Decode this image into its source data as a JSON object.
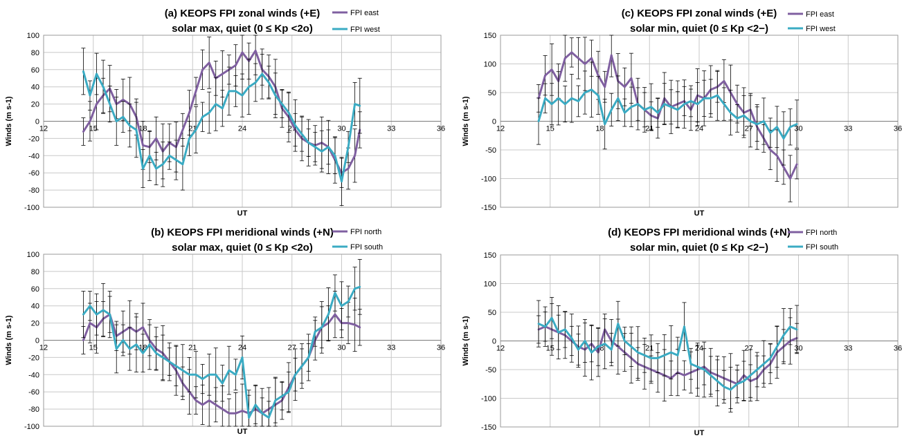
{
  "colors": {
    "series_a": "#7f5fa0",
    "series_b": "#3aabc3",
    "grid": "#c8c8c8",
    "errorbar": "#000000"
  },
  "chart_data": [
    {
      "type": "line",
      "title": "(a) KEOPS FPI zonal winds (+E)",
      "subtitle": "solar max, quiet (0 ≤ Kp <2o)",
      "xlabel": "UT",
      "ylabel": "Winds (m s-1)",
      "xlim": [
        12,
        36
      ],
      "ylim": [
        -100,
        100
      ],
      "xticks": [
        "12",
        "15",
        "18",
        "21",
        "24",
        "27",
        "30",
        "33",
        "36"
      ],
      "yticks": [
        "100",
        "80",
        "60",
        "40",
        "20",
        "0",
        "-20",
        "-40",
        "-60",
        "-80",
        "-100"
      ],
      "grid": true,
      "legend": "top-right",
      "series": [
        {
          "name": "FPI east",
          "x": [
            14.4,
            14.8,
            15.2,
            15.6,
            16.0,
            16.4,
            16.8,
            17.2,
            17.6,
            18.0,
            18.4,
            18.8,
            19.2,
            19.6,
            20.0,
            20.4,
            20.8,
            21.2,
            21.6,
            22.0,
            22.4,
            22.8,
            23.2,
            23.6,
            24.0,
            24.4,
            24.8,
            25.2,
            25.6,
            26.0,
            26.4,
            26.8,
            27.2,
            27.6,
            28.0,
            28.4,
            28.8,
            29.2,
            29.6,
            30.0,
            30.4,
            30.8,
            31.1
          ],
          "y": [
            -12,
            0,
            20,
            30,
            38,
            20,
            25,
            20,
            5,
            -28,
            -30,
            -20,
            -35,
            -25,
            -30,
            -10,
            10,
            35,
            60,
            68,
            50,
            55,
            60,
            65,
            80,
            70,
            82,
            60,
            52,
            40,
            15,
            5,
            -10,
            -20,
            -25,
            -28,
            -25,
            -30,
            -45,
            -60,
            -55,
            -40,
            -10
          ]
        },
        {
          "name": "FPI west",
          "x": [
            14.4,
            14.8,
            15.2,
            15.6,
            16.0,
            16.4,
            16.8,
            17.2,
            17.6,
            18.0,
            18.4,
            18.8,
            19.2,
            19.6,
            20.0,
            20.4,
            20.8,
            21.2,
            21.6,
            22.0,
            22.4,
            22.8,
            23.2,
            23.6,
            24.0,
            24.4,
            24.8,
            25.2,
            25.6,
            26.0,
            26.4,
            26.8,
            27.2,
            27.6,
            28.0,
            28.4,
            28.8,
            29.2,
            29.6,
            30.0,
            30.4,
            30.8,
            31.1
          ],
          "y": [
            58,
            30,
            55,
            40,
            20,
            0,
            5,
            -5,
            -10,
            -55,
            -40,
            -55,
            -50,
            -40,
            -45,
            -50,
            -20,
            -10,
            5,
            10,
            20,
            15,
            35,
            35,
            30,
            40,
            45,
            55,
            45,
            30,
            20,
            10,
            -5,
            -15,
            -25,
            -30,
            -35,
            -30,
            -40,
            -70,
            -30,
            20,
            18
          ]
        }
      ]
    },
    {
      "type": "line",
      "title": "(b) KEOPS FPI meridional winds (+N)",
      "subtitle": "solar max, quiet (0 ≤ Kp <2o)",
      "xlabel": "UT",
      "ylabel": "Winds (m s-1)",
      "xlim": [
        12,
        36
      ],
      "ylim": [
        -100,
        100
      ],
      "xticks": [
        "12",
        "15",
        "18",
        "21",
        "24",
        "27",
        "30",
        "33",
        "36"
      ],
      "yticks": [
        "100",
        "80",
        "60",
        "40",
        "20",
        "0",
        "-20",
        "-40",
        "-60",
        "-80",
        "-100"
      ],
      "grid": true,
      "legend": "top-right",
      "series": [
        {
          "name": "FPI north",
          "x": [
            14.4,
            14.8,
            15.2,
            15.6,
            16.0,
            16.4,
            16.8,
            17.2,
            17.6,
            18.0,
            18.4,
            18.8,
            19.2,
            19.6,
            20.0,
            20.4,
            20.8,
            21.2,
            21.6,
            22.0,
            22.4,
            22.8,
            23.2,
            23.6,
            24.0,
            24.4,
            24.8,
            25.2,
            25.6,
            26.0,
            26.4,
            26.8,
            27.2,
            27.6,
            28.0,
            28.4,
            28.8,
            29.2,
            29.6,
            30.0,
            30.4,
            30.8,
            31.1
          ],
          "y": [
            0,
            20,
            15,
            25,
            30,
            5,
            10,
            15,
            10,
            15,
            0,
            -10,
            -15,
            -25,
            -35,
            -50,
            -60,
            -70,
            -75,
            -70,
            -75,
            -80,
            -85,
            -85,
            -82,
            -85,
            -80,
            -85,
            -80,
            -75,
            -70,
            -55,
            -40,
            -30,
            -20,
            0,
            15,
            20,
            30,
            20,
            20,
            18,
            15
          ]
        },
        {
          "name": "FPI south",
          "x": [
            14.4,
            14.8,
            15.2,
            15.6,
            16.0,
            16.4,
            16.8,
            17.2,
            17.6,
            18.0,
            18.4,
            18.8,
            19.2,
            19.6,
            20.0,
            20.4,
            20.8,
            21.2,
            21.6,
            22.0,
            22.4,
            22.8,
            23.2,
            23.6,
            24.0,
            24.4,
            24.8,
            25.2,
            25.6,
            26.0,
            26.4,
            26.8,
            27.2,
            27.6,
            28.0,
            28.4,
            28.8,
            29.2,
            29.6,
            30.0,
            30.4,
            30.8,
            31.1
          ],
          "y": [
            30,
            40,
            30,
            35,
            30,
            -10,
            0,
            -10,
            -5,
            -15,
            -5,
            -15,
            -20,
            -25,
            -30,
            -35,
            -40,
            -40,
            -45,
            -40,
            -40,
            -50,
            -35,
            -40,
            -20,
            -90,
            -75,
            -85,
            -90,
            -70,
            -65,
            -60,
            -40,
            -30,
            -20,
            10,
            15,
            30,
            55,
            40,
            45,
            60,
            62
          ]
        }
      ]
    },
    {
      "type": "line",
      "title": "(c) KEOPS FPI zonal winds (+E)",
      "subtitle": "solar min, quiet (0 ≤ Kp <2−)",
      "xlabel": "UT",
      "ylabel": "Winds (m s-1)",
      "xlim": [
        12,
        36
      ],
      "ylim": [
        -150,
        150
      ],
      "xticks": [
        "12",
        "15",
        "18",
        "21",
        "24",
        "27",
        "30",
        "33",
        "36"
      ],
      "yticks": [
        "150",
        "100",
        "50",
        "0",
        "-50",
        "-100",
        "-150"
      ],
      "grid": true,
      "legend": "top-right",
      "series": [
        {
          "name": "FPI east",
          "x": [
            14.3,
            14.7,
            15.1,
            15.5,
            15.9,
            16.3,
            16.7,
            17.1,
            17.5,
            17.9,
            18.3,
            18.7,
            19.1,
            19.5,
            19.9,
            20.3,
            20.7,
            21.1,
            21.5,
            21.9,
            22.3,
            22.7,
            23.1,
            23.5,
            23.9,
            24.3,
            24.7,
            25.1,
            25.5,
            25.9,
            26.3,
            26.7,
            27.1,
            27.5,
            27.9,
            28.3,
            28.7,
            29.1,
            29.5,
            29.9
          ],
          "y": [
            40,
            80,
            90,
            70,
            110,
            120,
            110,
            100,
            110,
            80,
            60,
            115,
            70,
            60,
            75,
            30,
            20,
            10,
            5,
            40,
            25,
            30,
            35,
            20,
            45,
            40,
            55,
            60,
            70,
            50,
            30,
            15,
            20,
            -10,
            -30,
            -50,
            -60,
            -80,
            -100,
            -75
          ]
        },
        {
          "name": "FPI west",
          "x": [
            14.3,
            14.7,
            15.1,
            15.5,
            15.9,
            16.3,
            16.7,
            17.1,
            17.5,
            17.9,
            18.3,
            18.7,
            19.1,
            19.5,
            19.9,
            20.3,
            20.7,
            21.1,
            21.5,
            21.9,
            22.3,
            22.7,
            23.1,
            23.5,
            23.9,
            24.3,
            24.7,
            25.1,
            25.5,
            25.9,
            26.3,
            26.7,
            27.1,
            27.5,
            27.9,
            28.3,
            28.7,
            29.1,
            29.5,
            29.9
          ],
          "y": [
            0,
            40,
            30,
            40,
            30,
            40,
            35,
            50,
            55,
            45,
            -5,
            20,
            40,
            15,
            25,
            30,
            20,
            25,
            15,
            30,
            25,
            20,
            30,
            35,
            30,
            40,
            40,
            45,
            30,
            15,
            5,
            10,
            0,
            -5,
            0,
            -20,
            -10,
            -30,
            -10,
            -5
          ]
        }
      ]
    },
    {
      "type": "line",
      "title": "(d) KEOPS FPI meridional winds (+N)",
      "subtitle": "solar min, quiet (0 ≤ Kp <2−)",
      "xlabel": "UT",
      "ylabel": "Winds (m s-1)",
      "xlim": [
        12,
        36
      ],
      "ylim": [
        -150,
        150
      ],
      "xticks": [
        "12",
        "15",
        "18",
        "21",
        "24",
        "27",
        "30",
        "33",
        "36"
      ],
      "yticks": [
        "150",
        "100",
        "50",
        "0",
        "-50",
        "-100",
        "-150"
      ],
      "grid": true,
      "legend": "top-right",
      "series": [
        {
          "name": "FPI north",
          "x": [
            14.3,
            14.7,
            15.1,
            15.5,
            15.9,
            16.3,
            16.7,
            17.1,
            17.5,
            17.9,
            18.3,
            18.7,
            19.1,
            19.5,
            19.9,
            20.3,
            20.7,
            21.1,
            21.5,
            21.9,
            22.3,
            22.7,
            23.1,
            23.5,
            23.9,
            24.3,
            24.7,
            25.1,
            25.5,
            25.9,
            26.3,
            26.7,
            27.1,
            27.5,
            27.9,
            28.3,
            28.7,
            29.1,
            29.5,
            29.9
          ],
          "y": [
            20,
            25,
            20,
            15,
            10,
            0,
            -10,
            -15,
            -5,
            -20,
            20,
            0,
            -10,
            -20,
            -30,
            -40,
            -45,
            -50,
            -55,
            -60,
            -65,
            -55,
            -60,
            -55,
            -50,
            -45,
            -55,
            -60,
            -65,
            -70,
            -75,
            -60,
            -70,
            -65,
            -50,
            -40,
            -20,
            -10,
            0,
            5
          ]
        },
        {
          "name": "FPI south",
          "x": [
            14.3,
            14.7,
            15.1,
            15.5,
            15.9,
            16.3,
            16.7,
            17.1,
            17.5,
            17.9,
            18.3,
            18.7,
            19.1,
            19.5,
            19.9,
            20.3,
            20.7,
            21.1,
            21.5,
            21.9,
            22.3,
            22.7,
            23.1,
            23.5,
            23.9,
            24.3,
            24.7,
            25.1,
            25.5,
            25.9,
            26.3,
            26.7,
            27.1,
            27.5,
            27.9,
            28.3,
            28.7,
            29.1,
            29.5,
            29.9
          ],
          "y": [
            30,
            25,
            40,
            15,
            20,
            5,
            -15,
            0,
            -20,
            -10,
            -5,
            -15,
            30,
            0,
            -10,
            -20,
            -25,
            -30,
            -30,
            -25,
            -20,
            -25,
            25,
            -40,
            -45,
            -50,
            -60,
            -70,
            -80,
            -85,
            -75,
            -70,
            -60,
            -50,
            -40,
            -30,
            -10,
            10,
            25,
            20
          ]
        }
      ]
    }
  ]
}
